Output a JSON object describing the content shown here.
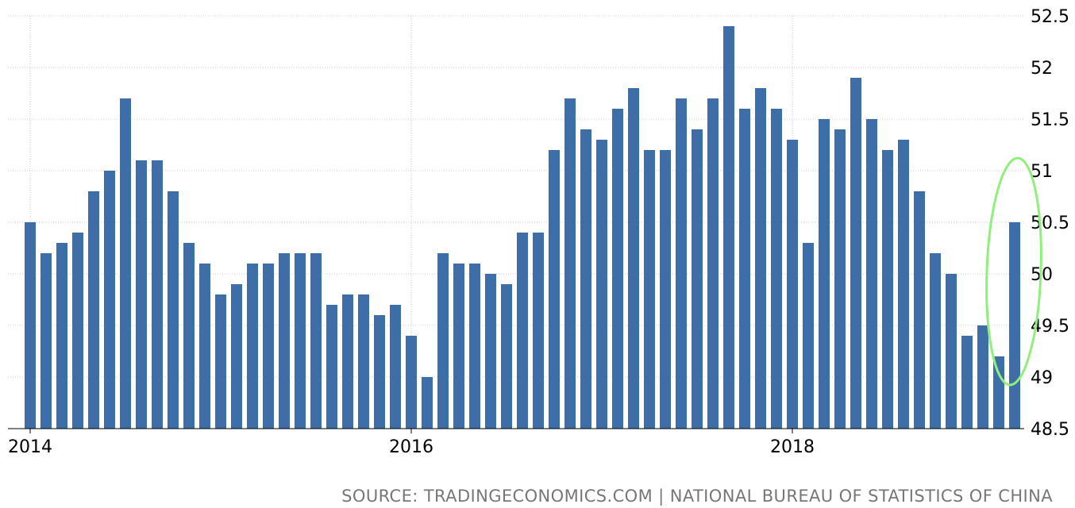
{
  "chart_data": {
    "type": "bar",
    "x_axis_labels": [
      "2014",
      "2016",
      "2018"
    ],
    "values": [
      50.5,
      50.2,
      50.3,
      50.4,
      50.8,
      51.0,
      51.7,
      51.1,
      51.1,
      50.8,
      50.3,
      50.1,
      49.8,
      49.9,
      50.1,
      50.1,
      50.2,
      50.2,
      50.2,
      49.7,
      49.8,
      49.8,
      49.6,
      49.7,
      49.4,
      49.0,
      50.2,
      50.1,
      50.1,
      50.0,
      49.9,
      50.4,
      50.4,
      51.2,
      51.7,
      51.4,
      51.3,
      51.6,
      51.8,
      51.2,
      51.2,
      51.7,
      51.4,
      51.7,
      52.4,
      51.6,
      51.8,
      51.6,
      51.3,
      50.3,
      51.5,
      51.4,
      51.9,
      51.5,
      51.2,
      51.3,
      50.8,
      50.2,
      50.0,
      49.4,
      49.5,
      49.2,
      50.5
    ],
    "y_ticks": [
      "52.5",
      "52",
      "51.5",
      "51",
      "50.5",
      "50",
      "49.5",
      "49",
      "48.5"
    ],
    "ylim": [
      48.5,
      52.5
    ],
    "y_axis_position": "right",
    "grid": true,
    "bar_color": "#3d6ea8",
    "annotation_color": "#8ef07a",
    "source": "SOURCE: TRADINGECONOMICS.COM | NATIONAL BUREAU OF STATISTICS OF CHINA"
  }
}
